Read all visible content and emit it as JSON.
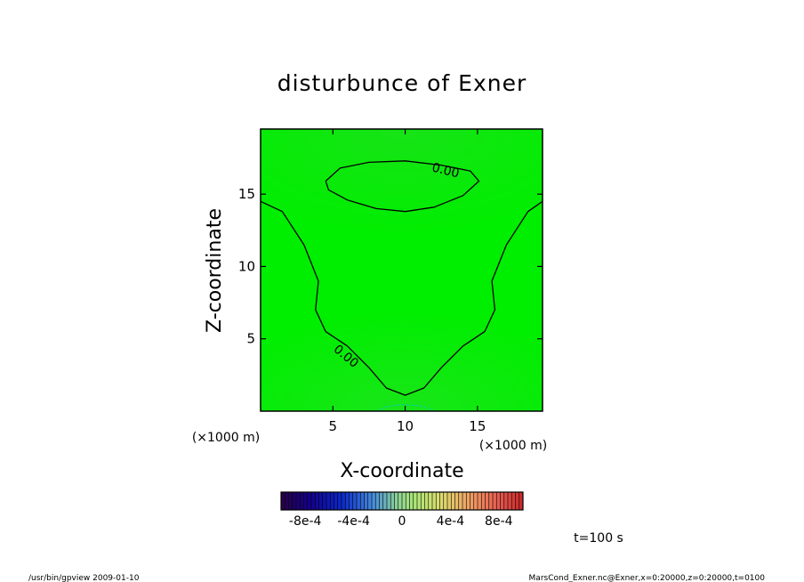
{
  "chart_data": {
    "type": "heatmap",
    "title": "disturbunce of Exner",
    "xlabel": "X-coordinate",
    "ylabel": "Z-coordinate",
    "x_unit": "(×1000 m)",
    "z_unit": "(×1000 m)",
    "xlim": [
      0,
      19.5
    ],
    "ylim": [
      0,
      19.5
    ],
    "x_ticks": [
      5,
      10,
      15
    ],
    "y_ticks": [
      5,
      10,
      15
    ],
    "contours": [
      {
        "label": "0.00",
        "points": [
          [
            0,
            14.5
          ],
          [
            1.5,
            13.8
          ],
          [
            3,
            11.5
          ],
          [
            4,
            9
          ],
          [
            3.8,
            7
          ],
          [
            4.5,
            5.5
          ],
          [
            6,
            4.5
          ],
          [
            7.5,
            3
          ],
          [
            8.7,
            1.6
          ],
          [
            10,
            1.1
          ],
          [
            11.3,
            1.6
          ],
          [
            12.5,
            3
          ],
          [
            14,
            4.5
          ],
          [
            15.5,
            5.5
          ],
          [
            16.2,
            7
          ],
          [
            16,
            9
          ],
          [
            17,
            11.5
          ],
          [
            18.5,
            13.8
          ],
          [
            19.5,
            14.5
          ]
        ]
      },
      {
        "label": "0.00",
        "points": [
          [
            4.5,
            15.9
          ],
          [
            5.5,
            16.8
          ],
          [
            7.5,
            17.2
          ],
          [
            10,
            17.3
          ],
          [
            12.5,
            17.0
          ],
          [
            14.5,
            16.6
          ],
          [
            15.1,
            15.9
          ],
          [
            14,
            14.9
          ],
          [
            12,
            14.1
          ],
          [
            10,
            13.8
          ],
          [
            8,
            14
          ],
          [
            6,
            14.6
          ],
          [
            4.7,
            15.3
          ],
          [
            4.5,
            15.9
          ]
        ]
      },
      {
        "label": "",
        "dashed": true,
        "color": "#00c8c8",
        "points": [
          [
            8,
            0
          ],
          [
            8.8,
            0.35
          ],
          [
            10,
            0.45
          ],
          [
            11.2,
            0.35
          ],
          [
            12,
            0
          ]
        ]
      }
    ],
    "fill_colors": {
      "background": "#00ee00",
      "upper_band": "#11e411",
      "lower_band": "#22dd22",
      "center": "#00f000"
    },
    "colorbar": {
      "tick_labels": [
        "-8e-4",
        "-4e-4",
        "0",
        "4e-4",
        "8e-4"
      ],
      "tick_values": [
        -0.0008,
        -0.0004,
        0,
        0.0004,
        0.0008
      ],
      "range": [
        -0.001,
        0.001
      ],
      "segments": 64
    }
  },
  "annotation": "t=100 s",
  "footer": {
    "left": "/usr/bin/gpview   2009-01-10",
    "right": "MarsCond_Exner.nc@Exner,x=0:20000,z=0:20000,t=0100"
  }
}
